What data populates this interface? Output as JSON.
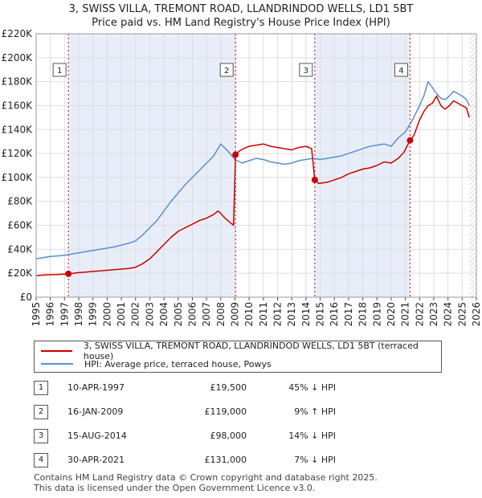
{
  "chart_data": {
    "type": "line",
    "title": "3, SWISS VILLA, TREMONT ROAD, LLANDRINDOD WELLS, LD1 5BT",
    "subtitle": "Price paid vs. HM Land Registry's House Price Index (HPI)",
    "x_ticks": [
      "1995",
      "1996",
      "1997",
      "1998",
      "1999",
      "2000",
      "2001",
      "2002",
      "2003",
      "2004",
      "2005",
      "2006",
      "2007",
      "2008",
      "2009",
      "2010",
      "2011",
      "2012",
      "2013",
      "2014",
      "2015",
      "2016",
      "2017",
      "2018",
      "2019",
      "2020",
      "2021",
      "2022",
      "2023",
      "2024",
      "2025",
      "2026"
    ],
    "y_ticks": [
      "£0",
      "£20K",
      "£40K",
      "£60K",
      "£80K",
      "£100K",
      "£120K",
      "£140K",
      "£160K",
      "£180K",
      "£200K",
      "£220K"
    ],
    "xlim": [
      1995,
      2026
    ],
    "ylim": [
      0,
      220000
    ],
    "grid": true,
    "series": [
      {
        "name": "3, SWISS VILLA, TREMONT ROAD, LLANDRINDOD WELLS, LD1 5BT (terraced house)",
        "color": "#cc0000",
        "x": [
          1995.0,
          1995.5,
          1996.0,
          1996.5,
          1997.0,
          1997.27,
          1997.6,
          1998.0,
          1998.5,
          1999.0,
          1999.5,
          2000.0,
          2000.5,
          2001.0,
          2001.5,
          2002.0,
          2002.5,
          2003.0,
          2003.5,
          2004.0,
          2004.5,
          2005.0,
          2005.5,
          2006.0,
          2006.5,
          2007.0,
          2007.5,
          2007.8,
          2008.0,
          2008.3,
          2008.7,
          2008.9,
          2009.04,
          2009.3,
          2009.6,
          2010.0,
          2010.5,
          2011.0,
          2011.5,
          2012.0,
          2012.5,
          2013.0,
          2013.5,
          2014.0,
          2014.4,
          2014.62,
          2014.9,
          2015.5,
          2016.0,
          2016.5,
          2017.0,
          2017.5,
          2018.0,
          2018.5,
          2019.0,
          2019.5,
          2020.0,
          2020.5,
          2020.9,
          2021.33,
          2021.6,
          2022.0,
          2022.3,
          2022.6,
          2022.9,
          2023.2,
          2023.5,
          2023.8,
          2024.1,
          2024.4,
          2024.7,
          2025.0,
          2025.3,
          2025.5
        ],
        "values": [
          18000,
          18500,
          18800,
          19000,
          19300,
          19500,
          20000,
          20500,
          21000,
          21500,
          22000,
          22500,
          23000,
          23500,
          24000,
          25000,
          28000,
          32000,
          38000,
          44000,
          50000,
          55000,
          58000,
          61000,
          64000,
          66000,
          69000,
          72000,
          70000,
          66000,
          62000,
          60000,
          119000,
          122000,
          124000,
          126000,
          127000,
          128000,
          126000,
          125000,
          124000,
          123000,
          125000,
          126000,
          124000,
          98000,
          95000,
          96000,
          98000,
          100000,
          103000,
          105000,
          107000,
          108000,
          110000,
          113000,
          112000,
          116000,
          121000,
          131000,
          135000,
          148000,
          155000,
          160000,
          162000,
          168000,
          160000,
          157000,
          160000,
          164000,
          162000,
          160000,
          158000,
          150000
        ]
      },
      {
        "name": "HPI: Average price, terraced house, Powys",
        "color": "#5b8fd0",
        "x": [
          1995.0,
          1995.5,
          1996.0,
          1996.5,
          1997.0,
          1997.5,
          1998.0,
          1998.5,
          1999.0,
          1999.5,
          2000.0,
          2000.5,
          2001.0,
          2001.5,
          2002.0,
          2002.5,
          2003.0,
          2003.5,
          2004.0,
          2004.5,
          2005.0,
          2005.5,
          2006.0,
          2006.5,
          2007.0,
          2007.5,
          2007.8,
          2008.0,
          2008.5,
          2009.0,
          2009.5,
          2010.0,
          2010.5,
          2011.0,
          2011.5,
          2012.0,
          2012.5,
          2013.0,
          2013.5,
          2014.0,
          2014.5,
          2015.0,
          2015.5,
          2016.0,
          2016.5,
          2017.0,
          2017.5,
          2018.0,
          2018.5,
          2019.0,
          2019.5,
          2020.0,
          2020.5,
          2021.0,
          2021.5,
          2022.0,
          2022.3,
          2022.6,
          2022.9,
          2023.2,
          2023.5,
          2023.8,
          2024.1,
          2024.4,
          2024.7,
          2025.0,
          2025.3,
          2025.5
        ],
        "values": [
          32000,
          33000,
          34000,
          34500,
          35000,
          36000,
          37000,
          38000,
          39000,
          40000,
          41000,
          42000,
          43500,
          45000,
          47000,
          52000,
          58000,
          64000,
          72000,
          80000,
          87000,
          94000,
          100000,
          106000,
          112000,
          118000,
          124000,
          128000,
          122000,
          115000,
          112000,
          114000,
          116000,
          115000,
          113000,
          112000,
          111000,
          112000,
          114000,
          115000,
          116000,
          115000,
          116000,
          117000,
          118000,
          120000,
          122000,
          124000,
          126000,
          127000,
          128000,
          126000,
          133000,
          138000,
          148000,
          160000,
          168000,
          180000,
          175000,
          170000,
          166000,
          165000,
          168000,
          172000,
          170000,
          168000,
          165000,
          160000
        ]
      }
    ],
    "markers": [
      {
        "label": "1",
        "x": 1997.27,
        "value": 19500
      },
      {
        "label": "2",
        "x": 2009.04,
        "value": 119000
      },
      {
        "label": "3",
        "x": 2014.62,
        "value": 98000
      },
      {
        "label": "4",
        "x": 2021.33,
        "value": 131000
      }
    ],
    "shaded_ranges": [
      [
        1997.27,
        2009.04
      ],
      [
        2014.62,
        2021.33
      ]
    ],
    "hatched_range": [
      2025.5,
      2026
    ]
  },
  "legend": {
    "property_label": "3, SWISS VILLA, TREMONT ROAD, LLANDRINDOD WELLS, LD1 5BT (terraced house)",
    "hpi_label": "HPI: Average price, terraced house, Powys"
  },
  "sales": [
    {
      "num": "1",
      "date": "10-APR-1997",
      "price": "£19,500",
      "hpi": "45% ↓ HPI"
    },
    {
      "num": "2",
      "date": "16-JAN-2009",
      "price": "£119,000",
      "hpi": "9% ↑ HPI"
    },
    {
      "num": "3",
      "date": "15-AUG-2014",
      "price": "£98,000",
      "hpi": "14% ↓ HPI"
    },
    {
      "num": "4",
      "date": "30-APR-2021",
      "price": "£131,000",
      "hpi": "7% ↓ HPI"
    }
  ],
  "footer": {
    "line1": "Contains HM Land Registry data © Crown copyright and database right 2025.",
    "line2": "This data is licensed under the Open Government Licence v3.0."
  }
}
